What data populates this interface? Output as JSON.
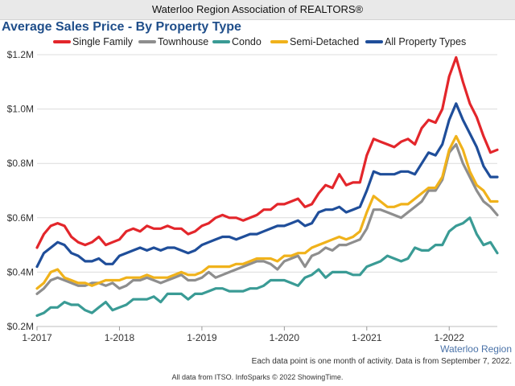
{
  "header": {
    "org": "Waterloo Region Association of REALTORS®"
  },
  "chart_data": {
    "type": "line",
    "title": "Average Sales Price - By Property Type",
    "region": "Waterloo Region",
    "x_start": "2017-01",
    "x_end": "2022-08",
    "x_tick_labels": [
      "1-2017",
      "1-2018",
      "1-2019",
      "1-2020",
      "1-2021",
      "1-2022"
    ],
    "ylim": [
      0.2,
      1.2
    ],
    "y_ticks": [
      0.2,
      0.4,
      0.6,
      0.8,
      1.0,
      1.2
    ],
    "y_tick_labels": [
      "$0.2M",
      "$0.4M",
      "$0.6M",
      "$0.8M",
      "$1.0M",
      "$1.2M"
    ],
    "y_unit": "$M",
    "grid": "horizontal",
    "legend_position": "top",
    "series": [
      {
        "name": "Single Family",
        "color": "#e3262b",
        "values": [
          0.49,
          0.54,
          0.57,
          0.58,
          0.57,
          0.53,
          0.51,
          0.5,
          0.51,
          0.53,
          0.5,
          0.51,
          0.52,
          0.55,
          0.56,
          0.55,
          0.57,
          0.56,
          0.56,
          0.57,
          0.56,
          0.56,
          0.54,
          0.55,
          0.57,
          0.58,
          0.6,
          0.61,
          0.6,
          0.6,
          0.59,
          0.6,
          0.61,
          0.63,
          0.63,
          0.65,
          0.65,
          0.66,
          0.67,
          0.64,
          0.65,
          0.69,
          0.72,
          0.71,
          0.76,
          0.72,
          0.73,
          0.73,
          0.83,
          0.89,
          0.88,
          0.87,
          0.86,
          0.88,
          0.89,
          0.87,
          0.93,
          0.96,
          0.95,
          1.0,
          1.12,
          1.19,
          1.1,
          1.02,
          0.97,
          0.9,
          0.84,
          0.85
        ]
      },
      {
        "name": "Townhouse",
        "color": "#8e8e8e",
        "values": [
          0.32,
          0.34,
          0.37,
          0.38,
          0.37,
          0.36,
          0.35,
          0.35,
          0.36,
          0.36,
          0.35,
          0.36,
          0.34,
          0.35,
          0.37,
          0.37,
          0.38,
          0.37,
          0.36,
          0.37,
          0.38,
          0.39,
          0.37,
          0.37,
          0.38,
          0.4,
          0.38,
          0.39,
          0.4,
          0.41,
          0.42,
          0.43,
          0.44,
          0.44,
          0.43,
          0.41,
          0.44,
          0.45,
          0.46,
          0.42,
          0.46,
          0.47,
          0.49,
          0.48,
          0.5,
          0.5,
          0.51,
          0.52,
          0.56,
          0.63,
          0.63,
          0.62,
          0.61,
          0.6,
          0.62,
          0.64,
          0.66,
          0.7,
          0.7,
          0.74,
          0.84,
          0.87,
          0.8,
          0.75,
          0.7,
          0.66,
          0.64,
          0.61
        ]
      },
      {
        "name": "Condo",
        "color": "#3a9b95",
        "values": [
          0.24,
          0.25,
          0.27,
          0.27,
          0.29,
          0.28,
          0.28,
          0.26,
          0.25,
          0.27,
          0.29,
          0.26,
          0.27,
          0.28,
          0.3,
          0.3,
          0.3,
          0.31,
          0.29,
          0.32,
          0.32,
          0.32,
          0.3,
          0.32,
          0.32,
          0.33,
          0.34,
          0.34,
          0.33,
          0.33,
          0.33,
          0.34,
          0.34,
          0.35,
          0.37,
          0.37,
          0.37,
          0.36,
          0.35,
          0.38,
          0.39,
          0.41,
          0.38,
          0.4,
          0.4,
          0.4,
          0.39,
          0.39,
          0.42,
          0.43,
          0.44,
          0.46,
          0.45,
          0.44,
          0.45,
          0.49,
          0.48,
          0.48,
          0.5,
          0.5,
          0.55,
          0.57,
          0.58,
          0.6,
          0.54,
          0.5,
          0.51,
          0.47
        ]
      },
      {
        "name": "Semi-Detached",
        "color": "#f0b21b",
        "values": [
          0.34,
          0.36,
          0.4,
          0.41,
          0.38,
          0.37,
          0.36,
          0.36,
          0.35,
          0.36,
          0.37,
          0.37,
          0.37,
          0.38,
          0.38,
          0.38,
          0.39,
          0.38,
          0.38,
          0.38,
          0.39,
          0.4,
          0.39,
          0.39,
          0.4,
          0.42,
          0.42,
          0.42,
          0.42,
          0.43,
          0.43,
          0.44,
          0.45,
          0.45,
          0.45,
          0.44,
          0.46,
          0.46,
          0.47,
          0.47,
          0.49,
          0.5,
          0.51,
          0.52,
          0.53,
          0.52,
          0.53,
          0.55,
          0.62,
          0.68,
          0.66,
          0.64,
          0.64,
          0.65,
          0.65,
          0.67,
          0.69,
          0.71,
          0.71,
          0.75,
          0.85,
          0.9,
          0.85,
          0.77,
          0.72,
          0.7,
          0.66,
          0.66
        ]
      },
      {
        "name": "All Property Types",
        "color": "#1f4e9a",
        "values": [
          0.42,
          0.47,
          0.49,
          0.51,
          0.5,
          0.47,
          0.46,
          0.44,
          0.44,
          0.45,
          0.43,
          0.43,
          0.46,
          0.47,
          0.48,
          0.49,
          0.48,
          0.49,
          0.48,
          0.49,
          0.49,
          0.48,
          0.47,
          0.48,
          0.5,
          0.51,
          0.52,
          0.53,
          0.53,
          0.52,
          0.53,
          0.54,
          0.54,
          0.55,
          0.56,
          0.57,
          0.57,
          0.58,
          0.59,
          0.57,
          0.58,
          0.62,
          0.63,
          0.63,
          0.64,
          0.62,
          0.63,
          0.64,
          0.7,
          0.77,
          0.76,
          0.76,
          0.76,
          0.77,
          0.77,
          0.76,
          0.8,
          0.84,
          0.83,
          0.87,
          0.96,
          1.02,
          0.96,
          0.91,
          0.86,
          0.79,
          0.75,
          0.75
        ]
      }
    ]
  },
  "footer": {
    "note": "Each data point is one month of activity. Data is from September 7, 2022.",
    "credit": "All data from ITSO. InfoSparks © 2022 ShowingTime."
  }
}
